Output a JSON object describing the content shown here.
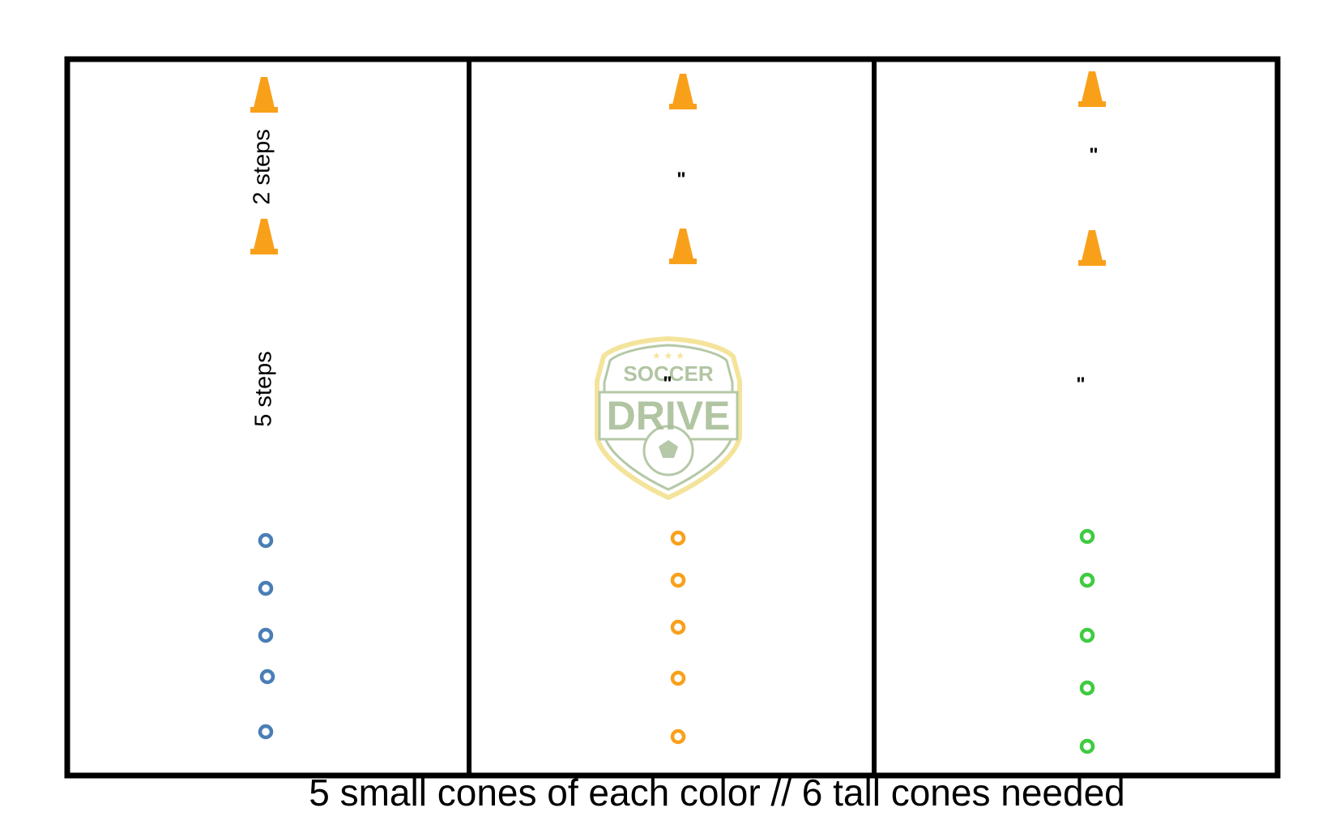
{
  "caption": "5 small cones of each color // 6 tall cones needed",
  "colors": {
    "tall_cone": "#f9a01b",
    "column_1_disc": "#4a7eb5",
    "column_2_disc": "#f9a01b",
    "column_3_disc": "#3fcb3f",
    "logo_green": "#a9bf98",
    "logo_gold": "#f3e08a"
  },
  "columns": [
    {
      "top_gap_label": "2 steps",
      "middle_gap_label": "5 steps",
      "small_cone_count": 5,
      "tall_cone_count": 2
    },
    {
      "top_gap_label": "\"",
      "middle_gap_label": "\"",
      "small_cone_count": 5,
      "tall_cone_count": 2
    },
    {
      "top_gap_label": "\"",
      "middle_gap_label": "\"",
      "small_cone_count": 5,
      "tall_cone_count": 2
    }
  ],
  "watermark": {
    "line1": "SOCCER",
    "line2": "DRIVE",
    "icons": [
      "star-icon",
      "star-icon",
      "star-icon",
      "soccer-ball-icon"
    ]
  }
}
